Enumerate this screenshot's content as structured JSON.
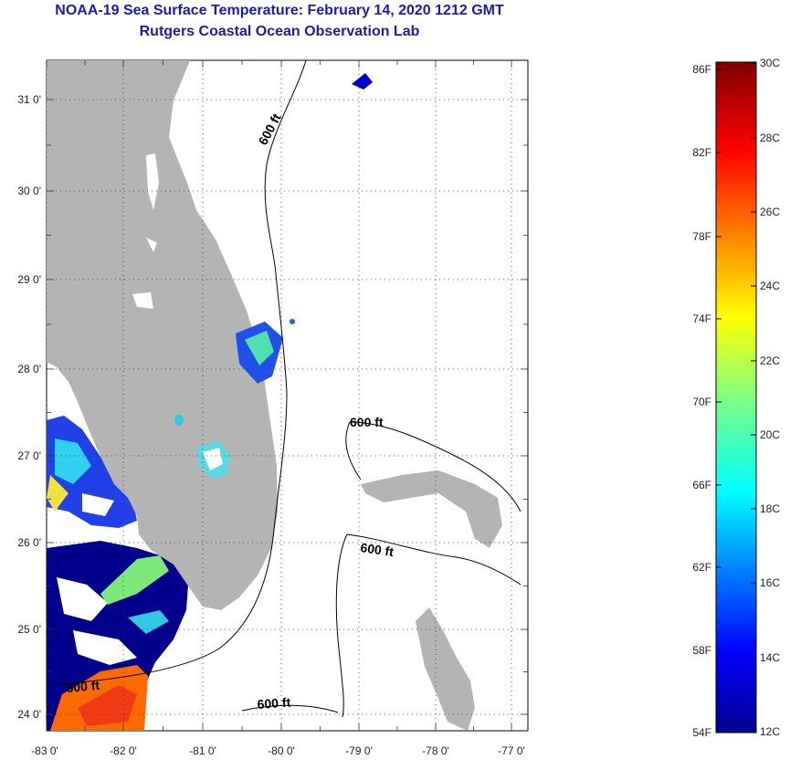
{
  "header": {
    "title": "NOAA-19 Sea Surface Temperature:  February 14, 2020 1212 GMT",
    "subtitle": "Rutgers Coastal Ocean Observation Lab"
  },
  "axes": {
    "lat_labels": [
      "31 0'",
      "30 0'",
      "29 0'",
      "28 0'",
      "27 0'",
      "26 0'",
      "25 0'",
      "24 0'"
    ],
    "lon_labels": [
      "-83 0'",
      "-82 0'",
      "-81 0'",
      "-80 0'",
      "-79 0'",
      "-78 0'",
      "-77 0'"
    ]
  },
  "contours": {
    "label_1": "600 ft",
    "label_2": "600 ft",
    "label_3": "600 ft",
    "label_4": "600 ft",
    "label_5": "600 ft"
  },
  "colorbar": {
    "fahrenheit": [
      "86F",
      "82F",
      "78F",
      "74F",
      "70F",
      "66F",
      "62F",
      "58F",
      "54F"
    ],
    "celsius": [
      "30C",
      "28C",
      "26C",
      "24C",
      "22C",
      "20C",
      "18C",
      "16C",
      "14C",
      "12C"
    ]
  },
  "colors": {
    "land": "#b4b4b4",
    "cold": "#00008c",
    "warm": "#ff6400",
    "title": "#1a1ab4"
  }
}
